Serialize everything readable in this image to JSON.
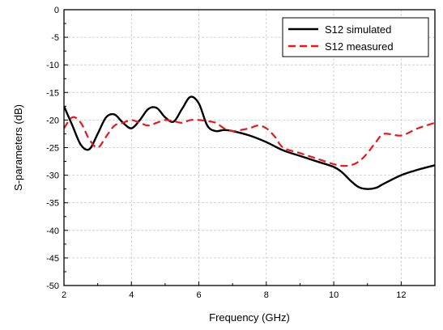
{
  "chart_data": {
    "type": "line",
    "title": "",
    "xlabel": "Frequency (GHz)",
    "ylabel": "S-parameters  (dB)",
    "xlim": [
      2,
      13
    ],
    "ylim": [
      -50,
      0
    ],
    "xticks": [
      2,
      4,
      6,
      8,
      10,
      12
    ],
    "xtick_labels": [
      "2",
      "4",
      "6",
      "8",
      "10",
      "12"
    ],
    "yticks": [
      0,
      -5,
      -10,
      -15,
      -20,
      -25,
      -30,
      -35,
      -40,
      -45,
      -50
    ],
    "ytick_labels": [
      "0",
      "-5",
      "-10",
      "-15",
      "-20",
      "-25",
      "-30",
      "-35",
      "-40",
      "-45",
      "-50"
    ],
    "grid": true,
    "legend_position": "top-right",
    "series": [
      {
        "name": "S12 simulated",
        "color": "#000000",
        "dash": "solid",
        "x": [
          2.0,
          2.25,
          2.5,
          2.75,
          3.0,
          3.25,
          3.5,
          3.75,
          4.0,
          4.25,
          4.5,
          4.75,
          5.0,
          5.25,
          5.5,
          5.75,
          6.0,
          6.25,
          6.5,
          6.75,
          7.0,
          7.5,
          8.0,
          8.5,
          9.0,
          9.5,
          10.0,
          10.25,
          10.5,
          10.75,
          11.0,
          11.25,
          11.5,
          12.0,
          12.5,
          13.0
        ],
        "y": [
          -17.5,
          -21.0,
          -24.5,
          -25.3,
          -22.5,
          -19.5,
          -19.0,
          -20.5,
          -21.5,
          -20.0,
          -18.0,
          -17.8,
          -19.5,
          -20.3,
          -18.0,
          -15.8,
          -17.0,
          -21.0,
          -22.0,
          -21.8,
          -22.0,
          -22.8,
          -24.0,
          -25.5,
          -26.5,
          -27.5,
          -28.5,
          -29.5,
          -31.0,
          -32.2,
          -32.5,
          -32.3,
          -31.5,
          -30.0,
          -29.0,
          -28.2
        ]
      },
      {
        "name": "S12 measured",
        "color": "#e8191d",
        "dash": "dashed",
        "x": [
          2.0,
          2.25,
          2.5,
          2.75,
          3.0,
          3.25,
          3.5,
          3.75,
          4.0,
          4.25,
          4.5,
          4.75,
          5.0,
          5.25,
          5.5,
          5.75,
          6.0,
          6.25,
          6.5,
          6.75,
          7.0,
          7.25,
          7.5,
          7.75,
          8.0,
          8.25,
          8.5,
          9.0,
          9.5,
          10.0,
          10.25,
          10.5,
          10.75,
          11.0,
          11.25,
          11.5,
          12.0,
          12.5,
          13.0
        ],
        "y": [
          -21.5,
          -19.5,
          -20.5,
          -23.5,
          -25.0,
          -23.0,
          -21.0,
          -20.5,
          -20.0,
          -20.5,
          -21.0,
          -20.5,
          -20.0,
          -20.2,
          -20.5,
          -20.0,
          -20.0,
          -20.2,
          -20.5,
          -21.5,
          -22.0,
          -21.8,
          -21.5,
          -21.0,
          -21.5,
          -23.0,
          -25.0,
          -26.0,
          -27.0,
          -28.0,
          -28.3,
          -28.2,
          -27.5,
          -26.0,
          -24.0,
          -22.5,
          -22.8,
          -21.5,
          -20.5
        ]
      }
    ]
  }
}
